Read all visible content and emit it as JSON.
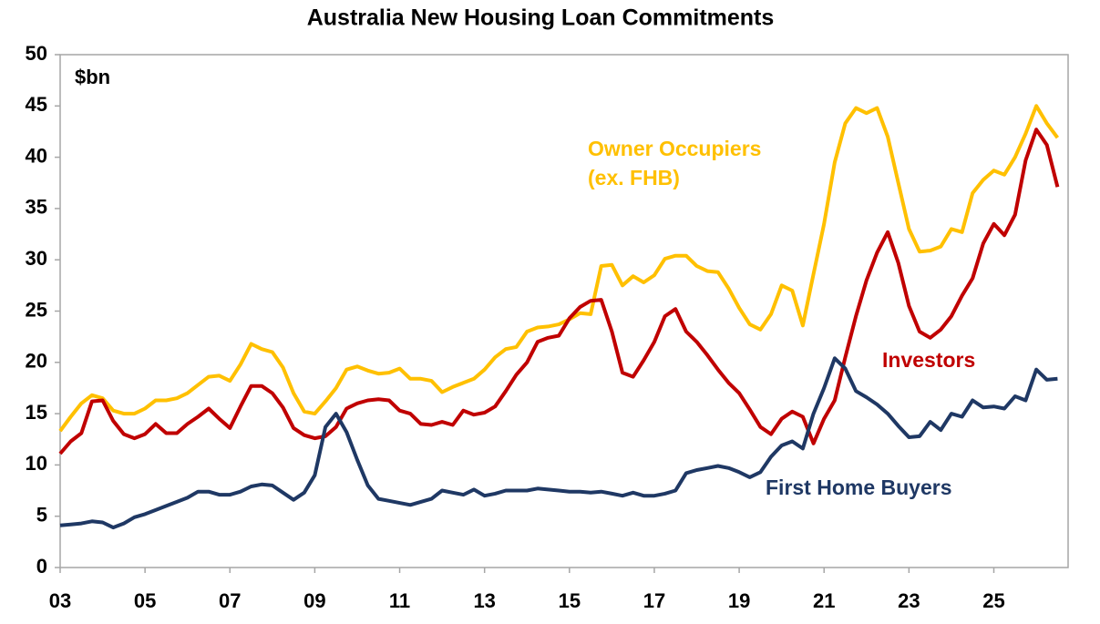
{
  "chart_data": {
    "type": "line",
    "title": "Australia New Housing Loan Commitments",
    "y_label": "$bn",
    "x": [
      3,
      3.25,
      3.5,
      3.75,
      4,
      4.25,
      4.5,
      4.75,
      5,
      5.25,
      5.5,
      5.75,
      6,
      6.25,
      6.5,
      6.75,
      7,
      7.25,
      7.5,
      7.75,
      8,
      8.25,
      8.5,
      8.75,
      9,
      9.25,
      9.5,
      9.75,
      10,
      10.25,
      10.5,
      10.75,
      11,
      11.25,
      11.5,
      11.75,
      12,
      12.25,
      12.5,
      12.75,
      13,
      13.25,
      13.5,
      13.75,
      14,
      14.25,
      14.5,
      14.75,
      15,
      15.25,
      15.5,
      15.75,
      16,
      16.25,
      16.5,
      16.75,
      17,
      17.25,
      17.5,
      17.75,
      18,
      18.25,
      18.5,
      18.75,
      19,
      19.25,
      19.5,
      19.75,
      20,
      20.25,
      20.5,
      20.75,
      21,
      21.25,
      21.5,
      21.75,
      22,
      22.25,
      22.5,
      22.75,
      23,
      23.25,
      23.5,
      23.75,
      24,
      24.25,
      24.5,
      24.75,
      25,
      25.25,
      25.5,
      25.75,
      26,
      26.25,
      26.5
    ],
    "series": [
      {
        "name": "Owner Occupiers",
        "subname": "(ex. FHB)",
        "color": "#ffc000",
        "values": [
          13.3,
          14.7,
          16,
          16.8,
          16.5,
          15.3,
          15,
          15,
          15.5,
          16.3,
          16.3,
          16.5,
          17,
          17.8,
          18.6,
          18.7,
          18.2,
          19.8,
          21.8,
          21.3,
          21,
          19.5,
          17,
          15.2,
          15,
          16.2,
          17.5,
          19.3,
          19.6,
          19.2,
          18.9,
          19,
          19.4,
          18.4,
          18.4,
          18.2,
          17.1,
          17.6,
          18,
          18.4,
          19.3,
          20.5,
          21.3,
          21.5,
          23,
          23.4,
          23.5,
          23.7,
          24.2,
          24.8,
          24.7,
          29.4,
          29.5,
          27.5,
          28.4,
          27.8,
          28.5,
          30.1,
          30.4,
          30.4,
          29.4,
          28.9,
          28.8,
          27.2,
          25.3,
          23.7,
          23.2,
          24.7,
          27.5,
          27,
          23.6,
          28.6,
          33.5,
          39.5,
          43.3,
          44.8,
          44.3,
          44.8,
          42,
          37.5,
          33,
          30.8,
          30.9,
          31.3,
          33,
          32.7,
          36.5,
          37.8,
          38.7,
          38.3,
          40,
          42.3,
          45,
          43.3,
          41.9
        ]
      },
      {
        "name": "Investors",
        "color": "#c00000",
        "values": [
          11.1,
          12.3,
          13.1,
          16.2,
          16.3,
          14.3,
          13,
          12.6,
          13,
          14,
          13.1,
          13.1,
          14,
          14.7,
          15.5,
          14.5,
          13.6,
          15.7,
          17.7,
          17.7,
          17,
          15.6,
          13.6,
          12.9,
          12.6,
          12.8,
          13.7,
          15.5,
          16,
          16.3,
          16.4,
          16.3,
          15.3,
          15,
          14,
          13.9,
          14.2,
          13.9,
          15.3,
          14.9,
          15.1,
          15.7,
          17.2,
          18.8,
          20,
          22,
          22.4,
          22.6,
          24.3,
          25.4,
          26,
          26.1,
          23,
          19,
          18.6,
          20.2,
          22,
          24.5,
          25.2,
          23,
          22,
          20.7,
          19.3,
          18,
          17,
          15.4,
          13.7,
          13,
          14.5,
          15.2,
          14.7,
          12.1,
          14.5,
          16.3,
          20.5,
          24.5,
          28,
          30.7,
          32.7,
          29.7,
          25.5,
          23,
          22.4,
          23.2,
          24.5,
          26.5,
          28.2,
          31.6,
          33.5,
          32.4,
          34.4,
          39.7,
          42.7,
          41.2,
          37.1
        ]
      },
      {
        "name": "First Home Buyers",
        "color": "#1f3864",
        "values": [
          4.1,
          4.2,
          4.3,
          4.5,
          4.4,
          3.9,
          4.3,
          4.9,
          5.2,
          5.6,
          6,
          6.4,
          6.8,
          7.4,
          7.4,
          7.1,
          7.1,
          7.4,
          7.9,
          8.1,
          8,
          7.3,
          6.6,
          7.3,
          9,
          13.7,
          15,
          13.2,
          10.5,
          8,
          6.7,
          6.5,
          6.3,
          6.1,
          6.4,
          6.7,
          7.5,
          7.3,
          7.1,
          7.6,
          7,
          7.2,
          7.5,
          7.5,
          7.5,
          7.7,
          7.6,
          7.5,
          7.4,
          7.4,
          7.3,
          7.4,
          7.2,
          7,
          7.3,
          7,
          7,
          7.2,
          7.5,
          9.2,
          9.5,
          9.7,
          9.9,
          9.7,
          9.3,
          8.8,
          9.3,
          10.8,
          11.9,
          12.3,
          11.6,
          15,
          17.5,
          20.4,
          19.4,
          17.2,
          16.6,
          15.9,
          15,
          13.8,
          12.7,
          12.8,
          14.2,
          13.4,
          15,
          14.7,
          16.3,
          15.6,
          15.7,
          15.5,
          16.7,
          16.3,
          19.3,
          18.3,
          18.4
        ]
      }
    ],
    "xlim": [
      3,
      26.75
    ],
    "xticks": [
      {
        "value": 3,
        "label": "03"
      },
      {
        "value": 5,
        "label": "05"
      },
      {
        "value": 7,
        "label": "07"
      },
      {
        "value": 9,
        "label": "09"
      },
      {
        "value": 11,
        "label": "11"
      },
      {
        "value": 13,
        "label": "13"
      },
      {
        "value": 15,
        "label": "15"
      },
      {
        "value": 17,
        "label": "17"
      },
      {
        "value": 19,
        "label": "19"
      },
      {
        "value": 21,
        "label": "21"
      },
      {
        "value": 23,
        "label": "23"
      },
      {
        "value": 25,
        "label": "25"
      }
    ],
    "ylim": [
      0,
      50
    ],
    "yticks": [
      0,
      5,
      10,
      15,
      20,
      25,
      30,
      35,
      40,
      45,
      50
    ],
    "grid": false
  }
}
